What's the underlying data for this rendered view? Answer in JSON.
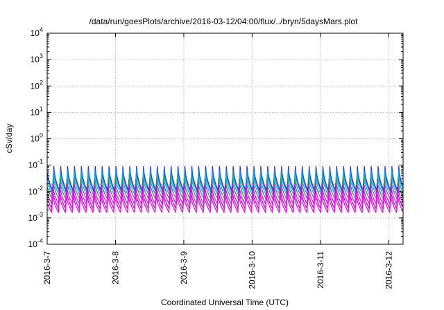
{
  "chart_data": {
    "type": "line",
    "title": "/data/run/goesPlots/archive/2016-03-12/04:00/flux/../bryn/5daysMars.plot",
    "xlabel": "Coordinated Universal Time (UTC)",
    "ylabel": "cSv/day",
    "yscale": "log",
    "ylim": [
      0.0001,
      10000
    ],
    "xlim": [
      0,
      5.21
    ],
    "x_ticks": [
      {
        "x": 0,
        "label": "2016-3-7"
      },
      {
        "x": 1,
        "label": "2016-3-8"
      },
      {
        "x": 2,
        "label": "2016-3-9"
      },
      {
        "x": 3,
        "label": "2016-3-10"
      },
      {
        "x": 4,
        "label": "2016-3-11"
      },
      {
        "x": 5,
        "label": "2016-3-12"
      }
    ],
    "y_ticks": [
      {
        "value": 0.0001,
        "base": "10",
        "exp": "-4"
      },
      {
        "value": 0.001,
        "base": "10",
        "exp": "-3"
      },
      {
        "value": 0.01,
        "base": "10",
        "exp": "-2"
      },
      {
        "value": 0.1,
        "base": "10",
        "exp": "-1"
      },
      {
        "value": 1,
        "base": "10",
        "exp": "0"
      },
      {
        "value": 10,
        "base": "10",
        "exp": "1"
      },
      {
        "value": 100,
        "base": "10",
        "exp": "2"
      },
      {
        "value": 1000,
        "base": "10",
        "exp": "3"
      },
      {
        "value": 10000,
        "base": "10",
        "exp": "4"
      }
    ],
    "grid": true,
    "pattern": {
      "description": "sawtooth, ~9.9 cycles per day",
      "cycles_per_day": 9.9
    },
    "series": [
      {
        "color": "#ff0000",
        "peak": 0.1,
        "trough": 0.009
      },
      {
        "color": "#2b2bd6",
        "peak": 0.088,
        "trough": 0.0095
      },
      {
        "color": "#1e90ff",
        "peak": 0.065,
        "trough": 0.0085
      },
      {
        "color": "#00bcd4",
        "peak": 0.045,
        "trough": 0.0068
      },
      {
        "color": "#2e8b57",
        "peak": 0.03,
        "trough": 0.005
      },
      {
        "color": "#9932cc",
        "peak": 0.02,
        "trough": 0.0032
      },
      {
        "color": "#cc00cc",
        "peak": 0.014,
        "trough": 0.0022
      },
      {
        "color": "#ff00ff",
        "peak": 0.01,
        "trough": 0.0016
      }
    ]
  }
}
